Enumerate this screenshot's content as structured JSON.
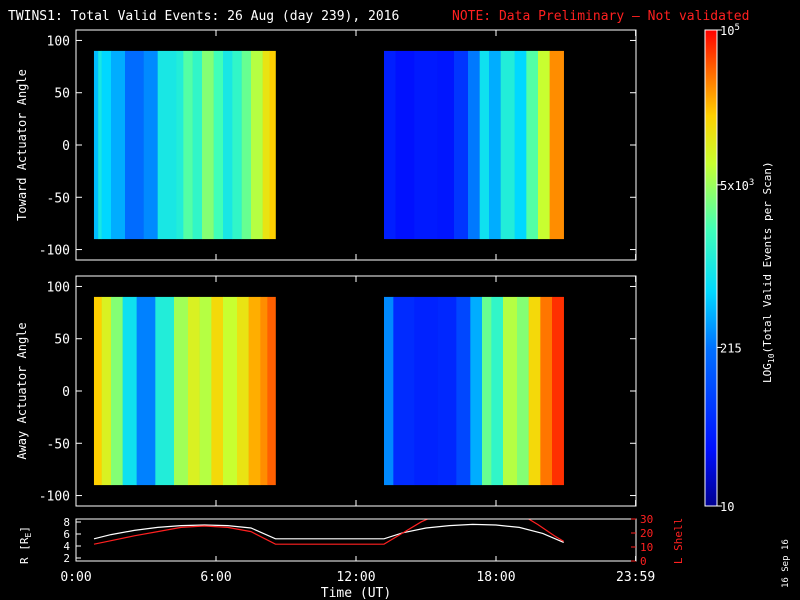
{
  "title": {
    "main": "TWINS1: Total Valid Events: 26 Aug (day 239), 2016",
    "note": "NOTE: Data Preliminary — Not validated"
  },
  "stamp": "16 Sep 16",
  "chart_data": [
    {
      "type": "heatmap",
      "name": "toward",
      "ylabel": "Toward Actuator Angle",
      "ylim": [
        -110,
        110
      ],
      "yticks": [
        100,
        50,
        0,
        -50,
        -100
      ],
      "x_hours": [
        0,
        24
      ],
      "angle_range": [
        -90,
        90
      ],
      "segments": [
        {
          "start": 0.77,
          "end": 8.55,
          "bands": [
            {
              "t": 0.77,
              "c": 0.42
            },
            {
              "t": 0.95,
              "c": 0.5
            },
            {
              "t": 1.1,
              "c": 0.45
            },
            {
              "t": 1.5,
              "c": 0.4
            },
            {
              "t": 2.1,
              "c": 0.32
            },
            {
              "t": 2.9,
              "c": 0.36
            },
            {
              "t": 3.5,
              "c": 0.5
            },
            {
              "t": 4.3,
              "c": 0.52
            },
            {
              "t": 4.6,
              "c": 0.6
            },
            {
              "t": 5.0,
              "c": 0.55
            },
            {
              "t": 5.4,
              "c": 0.65
            },
            {
              "t": 5.9,
              "c": 0.58
            },
            {
              "t": 6.3,
              "c": 0.5
            },
            {
              "t": 6.7,
              "c": 0.55
            },
            {
              "t": 7.1,
              "c": 0.62
            },
            {
              "t": 7.5,
              "c": 0.7
            },
            {
              "t": 8.0,
              "c": 0.78
            },
            {
              "t": 8.3,
              "c": 0.82
            }
          ]
        },
        {
          "start": 13.2,
          "end": 20.9,
          "bands": [
            {
              "t": 13.2,
              "c": 0.15
            },
            {
              "t": 13.7,
              "c": 0.12
            },
            {
              "t": 14.5,
              "c": 0.14
            },
            {
              "t": 15.5,
              "c": 0.13
            },
            {
              "t": 16.2,
              "c": 0.2
            },
            {
              "t": 16.8,
              "c": 0.34
            },
            {
              "t": 17.3,
              "c": 0.48
            },
            {
              "t": 17.7,
              "c": 0.4
            },
            {
              "t": 18.2,
              "c": 0.52
            },
            {
              "t": 18.8,
              "c": 0.45
            },
            {
              "t": 19.3,
              "c": 0.6
            },
            {
              "t": 19.8,
              "c": 0.72
            },
            {
              "t": 20.3,
              "c": 0.88
            }
          ]
        }
      ]
    },
    {
      "type": "heatmap",
      "name": "away",
      "ylabel": "Away Actuator Angle",
      "ylim": [
        -110,
        110
      ],
      "yticks": [
        100,
        50,
        0,
        -50,
        -100
      ],
      "x_hours": [
        0,
        24
      ],
      "angle_range": [
        -90,
        90
      ],
      "segments": [
        {
          "start": 0.77,
          "end": 8.55,
          "bands": [
            {
              "t": 0.77,
              "c": 0.82
            },
            {
              "t": 1.1,
              "c": 0.75
            },
            {
              "t": 1.5,
              "c": 0.65
            },
            {
              "t": 2.0,
              "c": 0.48
            },
            {
              "t": 2.6,
              "c": 0.35
            },
            {
              "t": 3.4,
              "c": 0.52
            },
            {
              "t": 4.2,
              "c": 0.68
            },
            {
              "t": 4.8,
              "c": 0.75
            },
            {
              "t": 5.3,
              "c": 0.7
            },
            {
              "t": 5.8,
              "c": 0.8
            },
            {
              "t": 6.3,
              "c": 0.72
            },
            {
              "t": 6.9,
              "c": 0.78
            },
            {
              "t": 7.4,
              "c": 0.85
            },
            {
              "t": 7.9,
              "c": 0.88
            },
            {
              "t": 8.2,
              "c": 0.92
            }
          ]
        },
        {
          "start": 13.2,
          "end": 20.9,
          "bands": [
            {
              "t": 13.2,
              "c": 0.36
            },
            {
              "t": 13.6,
              "c": 0.18
            },
            {
              "t": 14.5,
              "c": 0.16
            },
            {
              "t": 15.5,
              "c": 0.17
            },
            {
              "t": 16.3,
              "c": 0.24
            },
            {
              "t": 16.9,
              "c": 0.4
            },
            {
              "t": 17.4,
              "c": 0.62
            },
            {
              "t": 17.8,
              "c": 0.55
            },
            {
              "t": 18.3,
              "c": 0.7
            },
            {
              "t": 18.9,
              "c": 0.65
            },
            {
              "t": 19.4,
              "c": 0.8
            },
            {
              "t": 19.9,
              "c": 0.9
            },
            {
              "t": 20.4,
              "c": 0.96
            }
          ]
        }
      ]
    },
    {
      "type": "line",
      "name": "orbit",
      "ylabel": "R [R",
      "ylabel_sub": "E",
      "ylabel_end": "]",
      "ylim": [
        1.5,
        8.5
      ],
      "yticks": [
        2,
        4,
        6,
        8
      ],
      "y2label": "L Shell",
      "y2lim": [
        0,
        30
      ],
      "y2ticks": [
        0,
        10,
        20,
        30
      ],
      "series": [
        {
          "name": "R",
          "color": "#ffffff",
          "axis": "left",
          "x": [
            0.77,
            1.5,
            2.5,
            3.5,
            4.5,
            5.5,
            6.5,
            7.5,
            8.55,
            13.2,
            14,
            15,
            16,
            17,
            18,
            19,
            20,
            20.9
          ],
          "y": [
            5.2,
            5.9,
            6.6,
            7.1,
            7.4,
            7.5,
            7.4,
            7.0,
            5.2,
            5.2,
            6.2,
            7.0,
            7.4,
            7.6,
            7.5,
            7.1,
            6.1,
            4.6
          ]
        },
        {
          "name": "L Shell",
          "color": "#ff2020",
          "axis": "right",
          "x": [
            0.77,
            1.5,
            2.5,
            3.5,
            4.5,
            5.5,
            6.5,
            7.5,
            8.55,
            13.2,
            14,
            14.8,
            15.2,
            19.3,
            19.8,
            20.5,
            20.9
          ],
          "y": [
            12,
            14.5,
            18,
            21,
            24,
            25,
            24,
            21,
            12,
            12,
            20,
            28,
            31,
            31,
            26,
            18,
            14
          ]
        }
      ]
    }
  ],
  "x_axis": {
    "label": "Time (UT)",
    "ticks": [
      {
        "h": 0,
        "label": "0:00"
      },
      {
        "h": 6,
        "label": "6:00"
      },
      {
        "h": 12,
        "label": "12:00"
      },
      {
        "h": 18,
        "label": "18:00"
      },
      {
        "h": 23.983,
        "label": "23:59"
      }
    ]
  },
  "colorbar": {
    "scale": "LOG",
    "label_main": "LOG",
    "label_sub": "10",
    "label_rest": "(Total Valid  Events per Scan)",
    "ticks": [
      {
        "value": 100000,
        "label_base": "10",
        "label_exp": "5"
      },
      {
        "value": 5000,
        "label_base": "5x10",
        "label_exp": "3"
      },
      {
        "value": 215,
        "label_base": "215",
        "label_exp": ""
      },
      {
        "value": 10,
        "label_base": "10",
        "label_exp": ""
      }
    ],
    "range": [
      10,
      100000
    ]
  }
}
